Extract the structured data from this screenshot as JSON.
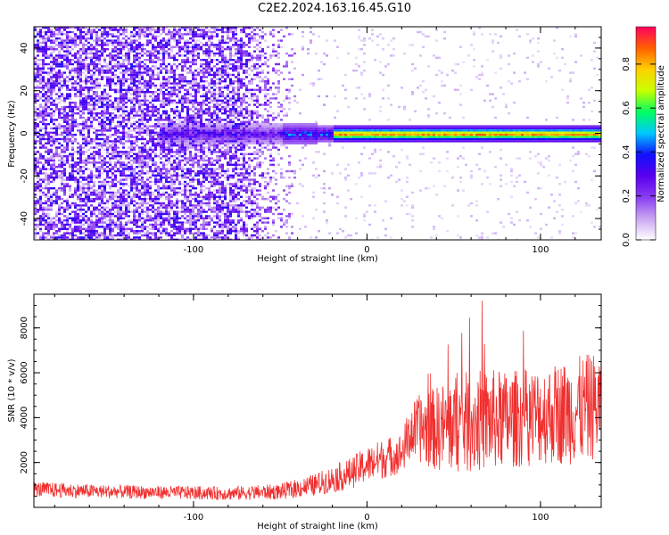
{
  "title": "C2E2.2024.163.16.45.G10",
  "chart_data": [
    {
      "type": "heatmap",
      "xlabel": "Height of straight line (km)",
      "ylabel": "Frequency (Hz)",
      "xlim": [
        -192,
        135
      ],
      "ylim": [
        -50,
        50
      ],
      "xticks": [
        -100,
        0,
        100
      ],
      "yticks": [
        -40,
        -20,
        0,
        20,
        40
      ],
      "colorbar": {
        "label": "Normalized spectral amplitude",
        "range": [
          0,
          0.97
        ],
        "ticks": [
          0.0,
          0.2,
          0.4,
          0.6,
          0.8
        ],
        "colors": [
          "#ffffff",
          "#c9a6f2",
          "#8a3cf2",
          "#5a00ee",
          "#1010ff",
          "#00c8ff",
          "#00ff60",
          "#c8ff00",
          "#ffd000",
          "#ff6000",
          "#ff0060"
        ]
      },
      "signal_band_center_hz": 0,
      "noise_region_x": [
        -192,
        -40
      ],
      "strong_signal_x": [
        -20,
        135
      ]
    },
    {
      "type": "line",
      "xlabel": "Height of straight line (km)",
      "ylabel": "SNR (10 * v/v)",
      "xlim": [
        -192,
        135
      ],
      "ylim": [
        0,
        9500
      ],
      "xticks": [
        -100,
        0,
        100
      ],
      "yticks": [
        2000,
        4000,
        6000,
        8000
      ],
      "series_color": "#f03030",
      "envelope": {
        "x": [
          -192,
          -150,
          -100,
          -80,
          -50,
          -30,
          -10,
          0,
          10,
          20,
          25,
          30,
          40,
          50,
          60,
          70,
          80,
          90,
          100,
          110,
          120,
          130,
          135
        ],
        "mean": [
          800,
          700,
          650,
          620,
          700,
          1000,
          1500,
          1900,
          2200,
          2400,
          3300,
          3500,
          3500,
          3700,
          3800,
          3900,
          3900,
          4000,
          4100,
          4200,
          4300,
          4500,
          4600
        ],
        "spread": [
          350,
          300,
          300,
          300,
          350,
          500,
          700,
          800,
          900,
          900,
          1300,
          1500,
          1900,
          2200,
          2300,
          2300,
          2200,
          2200,
          2200,
          2300,
          2400,
          2400,
          2400
        ]
      }
    }
  ]
}
